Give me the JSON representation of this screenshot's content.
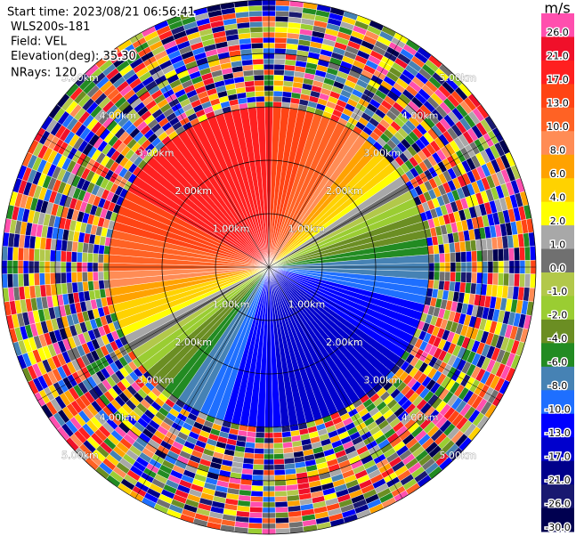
{
  "chart_data": {
    "type": "ppi",
    "header": [
      "Start time: 2023/08/21 06:56:41",
      "WLS200s-181",
      "Field: VEL",
      "Elevation(deg): 35.30",
      "NRays: 120"
    ],
    "unit": "m/s",
    "rlim": [
      0,
      5
    ],
    "rings": [
      {
        "value": 1,
        "label": "1.00km"
      },
      {
        "value": 2,
        "label": "2.00km"
      },
      {
        "value": 3,
        "label": "3.00km"
      },
      {
        "value": 4,
        "label": "4.00km"
      },
      {
        "value": 5,
        "label": "5.00km"
      }
    ],
    "colorbar_ticks": [
      {
        "value": 26,
        "label": "26.0"
      },
      {
        "value": 21,
        "label": "21.0"
      },
      {
        "value": 17,
        "label": "17.0"
      },
      {
        "value": 13,
        "label": "13.0"
      },
      {
        "value": 10,
        "label": "10.0"
      },
      {
        "value": 8,
        "label": "8.0"
      },
      {
        "value": 6,
        "label": "6.0"
      },
      {
        "value": 4,
        "label": "4.0"
      },
      {
        "value": 2,
        "label": "2.0"
      },
      {
        "value": 1,
        "label": "1.0"
      },
      {
        "value": 0,
        "label": "0.0"
      },
      {
        "value": -1,
        "label": "-1.0"
      },
      {
        "value": -2,
        "label": "-2.0"
      },
      {
        "value": -4,
        "label": "-4.0"
      },
      {
        "value": -6,
        "label": "-6.0"
      },
      {
        "value": -8,
        "label": "-8.0"
      },
      {
        "value": -10,
        "label": "-10.0"
      },
      {
        "value": -13,
        "label": "-13.0"
      },
      {
        "value": -17,
        "label": "-17.0"
      },
      {
        "value": -21,
        "label": "-21.0"
      },
      {
        "value": -26,
        "label": "-26.0"
      },
      {
        "value": -30,
        "label": "-30.0"
      }
    ],
    "colorbar_colors": [
      "#ff4fae",
      "#f0102a",
      "#ff2020",
      "#ff4414",
      "#ff6224",
      "#ff8c55",
      "#ffa200",
      "#ffd200",
      "#ffff00",
      "#a8a8a8",
      "#707070",
      "#b2c84a",
      "#9acd32",
      "#6b8e23",
      "#228b22",
      "#4682b4",
      "#1e6fff",
      "#0000ff",
      "#0000cd",
      "#00008b",
      "#191970",
      "#000050"
    ],
    "values": [
      15,
      14,
      14,
      13,
      13,
      12,
      11,
      11,
      10,
      9,
      9,
      8,
      7,
      6,
      5,
      4,
      4,
      3,
      2,
      1,
      0,
      -1,
      -2,
      -3,
      -4,
      -4,
      -5,
      -6,
      -7,
      -8,
      -9,
      -9,
      -10,
      -11,
      -11,
      -12,
      -13,
      -13,
      -14,
      -14,
      -15,
      -15,
      -16,
      -16,
      -16,
      -16,
      -17,
      -17,
      -17,
      -17,
      -17,
      -17,
      -17,
      -17,
      -17,
      -16,
      -16,
      -16,
      -16,
      -15,
      -15,
      -14,
      -14,
      -13,
      -13,
      -12,
      -11,
      -11,
      -10,
      -9,
      -9,
      -8,
      -7,
      -6,
      -5,
      -4,
      -4,
      -3,
      -2,
      -1,
      0,
      1,
      2,
      3,
      4,
      4,
      5,
      6,
      7,
      8,
      9,
      9,
      10,
      11,
      11,
      12,
      13,
      13,
      14,
      14,
      15,
      15,
      16,
      16,
      16,
      16,
      17,
      17,
      17,
      17,
      17,
      17,
      17,
      17,
      17,
      16,
      16,
      16,
      16,
      15
    ]
  }
}
